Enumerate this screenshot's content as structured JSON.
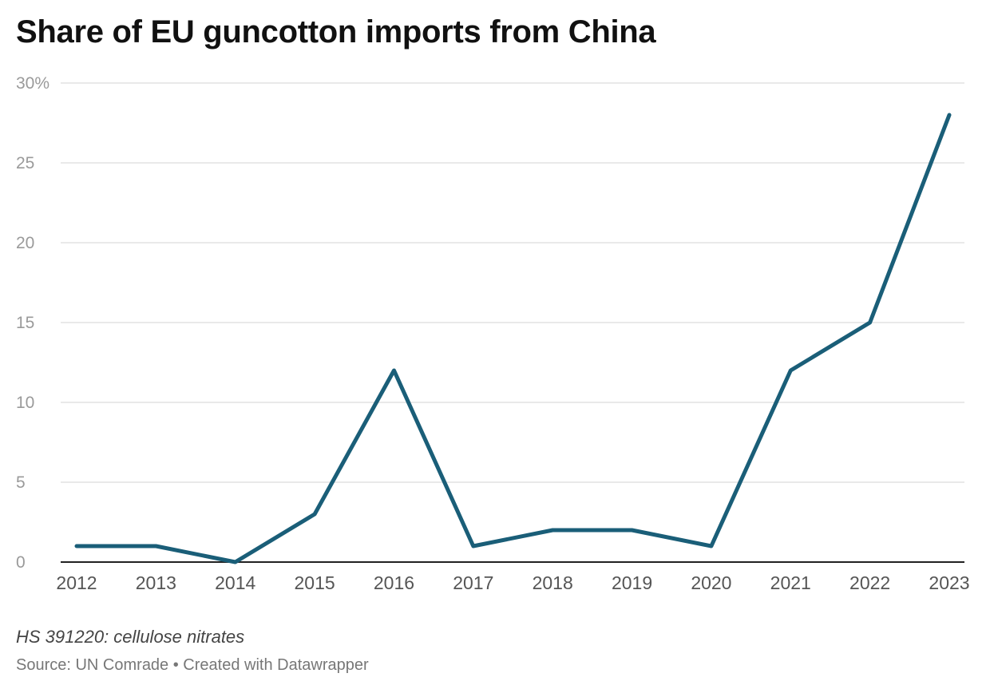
{
  "chart_data": {
    "type": "line",
    "title": "Share of EU guncotton imports from China",
    "x": [
      "2012",
      "2013",
      "2014",
      "2015",
      "2016",
      "2017",
      "2018",
      "2019",
      "2020",
      "2021",
      "2022",
      "2023"
    ],
    "series": [
      {
        "values": [
          1,
          1,
          0,
          3,
          12,
          1,
          2,
          2,
          1,
          12,
          15,
          28
        ],
        "color": "#1a5e78"
      }
    ],
    "y_ticks": [
      "0",
      "5",
      "10",
      "15",
      "20",
      "25",
      "30%"
    ],
    "y_tick_values": [
      0,
      5,
      10,
      15,
      20,
      25,
      30
    ],
    "ylim": [
      0,
      30
    ],
    "grid": true,
    "xlabel": "",
    "ylabel": "",
    "note": "HS 391220: cellulose nitrates",
    "source": "Source: UN Comrade • Created with Datawrapper"
  }
}
